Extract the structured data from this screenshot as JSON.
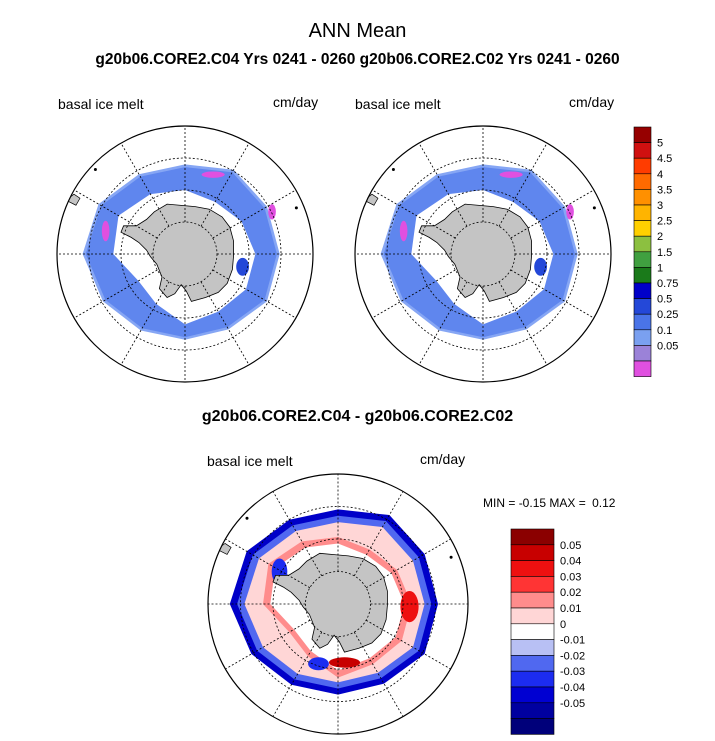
{
  "figure": {
    "title": "ANN Mean",
    "case_title": "g20b06.CORE2.C04  Yrs 0241 - 0260 g20b06.CORE2.C02  Yrs 0241 - 0260",
    "difference_title": "g20b06.CORE2.C04 - g20b06.CORE2.C02"
  },
  "panels": {
    "left": {
      "variable": "basal ice melt",
      "units": "cm/day"
    },
    "right": {
      "variable": "basal ice melt",
      "units": "cm/day"
    },
    "diff": {
      "variable": "basal ice melt",
      "units": "cm/day",
      "min_label": "MIN =",
      "min_value": "-0.15",
      "max_label": "MAX =",
      "max_value": "0.12"
    }
  },
  "colors": {
    "land": "#c4c4c4",
    "abs_fill_inner": "#3f66e0",
    "abs_fill_outer": "#5f86ee",
    "abs_fill_edge": "#86a6f4"
  },
  "chart_data": [
    {
      "type": "heatmap",
      "projection": "south polar stereographic",
      "title": "basal ice melt",
      "units": "cm/day",
      "colorbar": {
        "levels": [
          "0.05",
          "0.1",
          "0.25",
          "0.5",
          "0.75",
          "1",
          "1.5",
          "2",
          "2.5",
          "3",
          "3.5",
          "4",
          "4.5",
          "5"
        ],
        "colors": [
          "#e050e0",
          "#9b82d8",
          "#7aa0f0",
          "#4a74e8",
          "#2448d8",
          "#0000c8",
          "#1a7a1a",
          "#40a040",
          "#8cc040",
          "#ffd000",
          "#ffb400",
          "#ff9000",
          "#ff6a00",
          "#ff3c00",
          "#d01010",
          "#960000"
        ]
      }
    },
    {
      "type": "heatmap",
      "projection": "south polar stereographic",
      "title": "basal ice melt",
      "units": "cm/day",
      "colorbar": {
        "levels": [
          "0.05",
          "0.1",
          "0.25",
          "0.5",
          "0.75",
          "1",
          "1.5",
          "2",
          "2.5",
          "3",
          "3.5",
          "4",
          "4.5",
          "5"
        ],
        "colors": [
          "#e050e0",
          "#9b82d8",
          "#7aa0f0",
          "#4a74e8",
          "#2448d8",
          "#0000c8",
          "#1a7a1a",
          "#40a040",
          "#8cc040",
          "#ffd000",
          "#ffb400",
          "#ff9000",
          "#ff6a00",
          "#ff3c00",
          "#d01010",
          "#960000"
        ]
      }
    },
    {
      "type": "heatmap",
      "projection": "south polar stereographic",
      "title": "basal ice melt",
      "units": "cm/day",
      "min": -0.15,
      "max": 0.12,
      "colorbar": {
        "levels": [
          "-0.05",
          "-0.04",
          "-0.03",
          "-0.02",
          "-0.01",
          "0",
          "0.01",
          "0.02",
          "0.03",
          "0.04",
          "0.05"
        ],
        "colors": [
          "#00007a",
          "#0000a0",
          "#0000d2",
          "#1c2cf0",
          "#5068f0",
          "#b8c0f4",
          "#ffffff",
          "#ffd6d6",
          "#ff8c8c",
          "#ff3434",
          "#ee1010",
          "#c80000",
          "#8b0000"
        ]
      }
    }
  ]
}
